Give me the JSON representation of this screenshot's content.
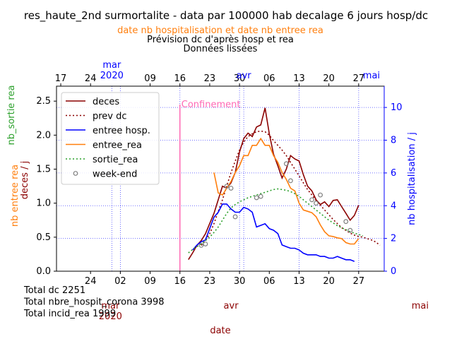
{
  "colors": {
    "deces": "#8b0000",
    "prev_dc": "#8b0000",
    "entree_hosp": "#0000ff",
    "entree_rea": "#ff7f0e",
    "sortie_rea": "#2ca02c",
    "weekend": "#808080",
    "confinement": "#ff69b4",
    "grid": "#4444ff",
    "month_label": "#8b0000",
    "top_axis": "#0000ff"
  },
  "chart_data": {
    "type": "line",
    "title": "res_haute_2nd surmortalite - data par 100000 hab decalage 6 jours hosp/dc",
    "subtitle_orange": "date nb hospitalisation et date nb entree rea",
    "subtitle_line2": "Prévision dc d'après hosp et rea",
    "subtitle_line3": "Données lissées",
    "xlabel": "date",
    "ylabel_left": [
      "nb_sortie rea",
      "nb entree rea",
      "deces / j"
    ],
    "ylabel_right": "nb hospitalisation / j",
    "ylim_left": [
      0,
      2.72
    ],
    "ylim_right": [
      0,
      11.3
    ],
    "left_ticks": [
      "0.0",
      "0.5",
      "1.0",
      "1.5",
      "2.0",
      "2.5"
    ],
    "right_ticks": [
      "0",
      "2",
      "4",
      "6",
      "8",
      "10"
    ],
    "bottom_day_ticks": [
      {
        "day": -18,
        "label": "24"
      },
      {
        "day": -11,
        "label": "02"
      },
      {
        "day": -4,
        "label": "09"
      },
      {
        "day": 3,
        "label": "16"
      },
      {
        "day": 10,
        "label": "23"
      },
      {
        "day": 17,
        "label": "30"
      },
      {
        "day": 24,
        "label": "06"
      },
      {
        "day": 31,
        "label": "13"
      },
      {
        "day": 38,
        "label": "20"
      },
      {
        "day": 45,
        "label": "27"
      }
    ],
    "top_day_ticks": [
      {
        "day": -12,
        "label": "17"
      },
      {
        "day": -5,
        "label": "24"
      },
      {
        "day": 9,
        "label": "09"
      },
      {
        "day": 16,
        "label": "16"
      },
      {
        "day": 23,
        "label": "23"
      },
      {
        "day": 30,
        "label": "30"
      },
      {
        "day": 37,
        "label": "06"
      },
      {
        "day": 44,
        "label": "13"
      },
      {
        "day": 51,
        "label": "20"
      },
      {
        "day": 58,
        "label": "27"
      }
    ],
    "bottom_month_labels": [
      {
        "day": -13,
        "label": "mar",
        "color_key": "month_label"
      },
      {
        "day": -13,
        "label": "2020",
        "color_key": "month_label"
      },
      {
        "day": 15,
        "label": "avr",
        "color_key": "month_label"
      },
      {
        "day": 45,
        "label": "mai",
        "color_key": "month_label"
      }
    ],
    "top_month_labels": [
      {
        "day": 0,
        "label": "mar",
        "color_key": "top_axis"
      },
      {
        "day": 0,
        "label": "2020",
        "color_key": "top_axis"
      },
      {
        "day": 31,
        "label": "avr",
        "color_key": "top_axis"
      },
      {
        "day": 61,
        "label": "mai",
        "color_key": "top_axis"
      }
    ],
    "x_domain": [
      -26,
      51
    ],
    "top_x_domain": [
      -13,
      64
    ],
    "vgrid_days": [
      -11,
      3,
      17,
      31,
      45
    ],
    "top_vgrid_days": [
      0,
      31
    ],
    "confinement": {
      "day": 3,
      "label": "Confinement"
    },
    "series": [
      {
        "name": "deces",
        "key": "deces",
        "axis": "left",
        "style": "solid",
        "x": [
          5,
          6,
          7,
          8,
          9,
          10,
          11,
          12,
          13,
          14,
          15,
          16,
          17,
          18,
          19,
          20,
          21,
          22,
          23,
          24,
          25,
          26,
          27,
          28,
          29,
          30,
          31,
          32,
          33,
          34,
          35,
          36,
          37,
          38,
          39,
          40,
          41,
          42,
          43,
          44,
          45
        ],
        "y": [
          0.17,
          0.27,
          0.38,
          0.45,
          0.55,
          0.7,
          0.85,
          1.05,
          1.25,
          1.22,
          1.3,
          1.45,
          1.75,
          1.95,
          2.03,
          1.98,
          2.12,
          2.15,
          2.4,
          2.02,
          1.72,
          1.55,
          1.37,
          1.5,
          1.7,
          1.65,
          1.62,
          1.42,
          1.25,
          1.18,
          1.05,
          0.98,
          1.02,
          0.95,
          1.04,
          1.05,
          0.95,
          0.85,
          0.75,
          0.82,
          0.97
        ]
      },
      {
        "name": "prev dc",
        "key": "prev_dc",
        "axis": "left",
        "style": "dotted",
        "x": [
          8,
          9,
          10,
          11,
          12,
          13,
          14,
          15,
          16,
          17,
          18,
          19,
          20,
          21,
          22,
          23,
          24,
          25,
          26,
          27,
          28,
          29,
          30,
          31,
          32,
          33,
          34,
          35,
          36,
          37,
          38,
          39,
          40,
          41,
          42,
          43,
          44,
          45,
          46,
          47,
          48,
          49,
          50
        ],
        "y": [
          0.38,
          0.45,
          0.55,
          0.7,
          0.88,
          1.05,
          1.25,
          1.45,
          1.62,
          1.78,
          1.9,
          1.98,
          2.02,
          2.05,
          2.06,
          2.05,
          2.0,
          1.92,
          1.85,
          1.78,
          1.7,
          1.6,
          1.5,
          1.4,
          1.3,
          1.2,
          1.12,
          1.04,
          0.97,
          0.9,
          0.83,
          0.76,
          0.7,
          0.64,
          0.6,
          0.56,
          0.53,
          0.51,
          0.5,
          0.48,
          0.46,
          0.43,
          0.38
        ]
      },
      {
        "name": "entree hosp.",
        "key": "entree_hosp",
        "axis": "right",
        "style": "solid",
        "x": [
          6,
          7,
          8,
          9,
          10,
          11,
          12,
          13,
          14,
          15,
          16,
          17,
          18,
          19,
          20,
          21,
          22,
          23,
          24,
          25,
          26,
          27,
          28,
          29,
          30,
          31,
          32,
          33,
          34,
          35,
          36,
          37,
          38,
          39,
          40,
          41,
          42,
          43,
          44
        ],
        "y": [
          1.3,
          1.6,
          1.8,
          1.9,
          2.6,
          3.3,
          3.6,
          4.1,
          4.1,
          3.8,
          3.6,
          3.6,
          3.9,
          3.8,
          3.6,
          2.7,
          2.8,
          2.9,
          2.6,
          2.5,
          2.3,
          1.6,
          1.5,
          1.4,
          1.4,
          1.3,
          1.1,
          1.0,
          1.0,
          1.0,
          0.9,
          0.9,
          0.8,
          0.8,
          0.9,
          0.8,
          0.7,
          0.7,
          0.6
        ]
      },
      {
        "name": "entree_rea",
        "key": "entree_rea",
        "axis": "left",
        "style": "solid",
        "x": [
          11,
          12,
          13,
          14,
          15,
          16,
          17,
          18,
          19,
          20,
          21,
          22,
          23,
          24,
          25,
          26,
          27,
          28,
          29,
          30,
          31,
          32,
          33,
          34,
          35,
          36,
          37,
          38,
          39,
          40,
          41,
          42,
          43,
          44,
          45
        ],
        "y": [
          1.45,
          1.15,
          1.12,
          1.22,
          1.32,
          1.45,
          1.55,
          1.7,
          1.7,
          1.85,
          1.85,
          1.95,
          1.85,
          1.85,
          1.7,
          1.6,
          1.45,
          1.35,
          1.22,
          1.18,
          1.0,
          0.9,
          0.88,
          0.86,
          0.8,
          0.68,
          0.58,
          0.52,
          0.51,
          0.49,
          0.48,
          0.42,
          0.4,
          0.4,
          0.48
        ]
      },
      {
        "name": "sortie_rea",
        "key": "sortie_rea",
        "axis": "left",
        "style": "dotted",
        "x": [
          5,
          6,
          7,
          8,
          9,
          10,
          11,
          12,
          13,
          14,
          15,
          16,
          17,
          18,
          19,
          20,
          21,
          22,
          23,
          24,
          25,
          26,
          27,
          28,
          29,
          30,
          31,
          32,
          33,
          34,
          35,
          36,
          37,
          38,
          39,
          40,
          41,
          42,
          43,
          44,
          45,
          46
        ],
        "y": [
          0.27,
          0.32,
          0.36,
          0.4,
          0.45,
          0.5,
          0.57,
          0.65,
          0.75,
          0.85,
          0.93,
          0.98,
          1.02,
          1.05,
          1.08,
          1.1,
          1.12,
          1.14,
          1.16,
          1.18,
          1.2,
          1.21,
          1.2,
          1.19,
          1.17,
          1.14,
          1.1,
          1.05,
          1.0,
          0.95,
          0.9,
          0.85,
          0.8,
          0.75,
          0.71,
          0.67,
          0.64,
          0.61,
          0.58,
          0.56,
          0.54,
          0.52
        ]
      },
      {
        "name": "week-end",
        "key": "weekend",
        "axis": "left",
        "style": "markers",
        "x": [
          8,
          9,
          14,
          15,
          16,
          21,
          22,
          28,
          29,
          34,
          35,
          36,
          42,
          43
        ],
        "y": [
          0.38,
          0.4,
          1.25,
          1.22,
          0.8,
          1.08,
          1.1,
          1.58,
          1.33,
          1.05,
          1.0,
          1.12,
          0.73,
          0.6
        ]
      }
    ],
    "legend": {
      "placement": "upper-left"
    },
    "totals": [
      "Total dc 2251",
      "Total nbre_hospit_corona 3998",
      "Total incid_rea 1999"
    ],
    "grid": true
  }
}
